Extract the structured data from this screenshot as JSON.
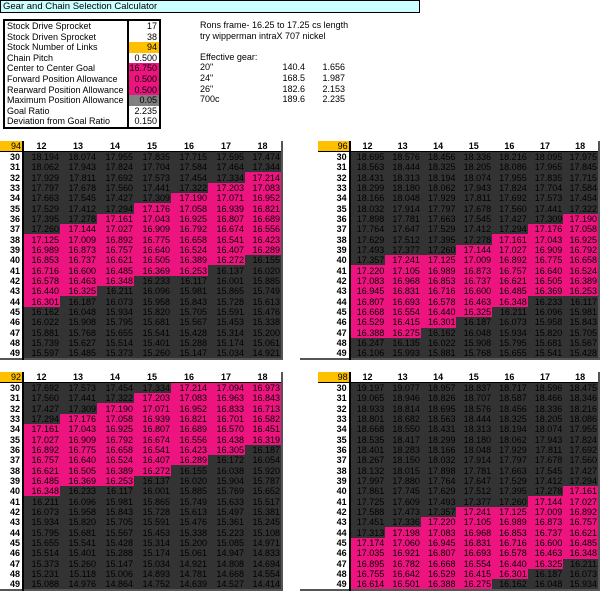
{
  "title": "Gear and Chain Selection Calculator",
  "params": [
    {
      "label": "Stock Drive Sprocket",
      "value": "17",
      "color": "#ffffff"
    },
    {
      "label": "Stock Driven Sprocket",
      "value": "38",
      "color": "#ffffff"
    },
    {
      "label": "Stock Number of Links",
      "value": "94",
      "color": "#ffc000"
    },
    {
      "label": "Chain Pitch",
      "value": "0.500",
      "color": "#ffffff"
    },
    {
      "label": "Center to Center Goal",
      "value": "16.750",
      "color": "#ee1480"
    },
    {
      "label": "Forward Position Allowance",
      "value": "0.500",
      "color": "#ee1480"
    },
    {
      "label": "Rearward Position Allowance",
      "value": "0.500",
      "color": "#ee1480"
    },
    {
      "label": "Maximum Position Allowance",
      "value": "0.05",
      "color": "#808080"
    },
    {
      "label": "Goal Ratio",
      "value": "2.235",
      "color": "#ffffff"
    },
    {
      "label": "Deviation from Goal Ratio",
      "value": "0.150",
      "color": "#ffffff"
    }
  ],
  "notes": {
    "line1": "Rons frame- 16.25 to 17.25 cs length",
    "line2": "try wipperman intraX 707 nickel",
    "effective_label": "Effective gear:",
    "gears": [
      {
        "size": "20\"",
        "gear": "140.4",
        "ratio": "1.656"
      },
      {
        "size": "24\"",
        "gear": "168.5",
        "ratio": "1.987"
      },
      {
        "size": "26\"",
        "gear": "182.6",
        "ratio": "2.153"
      },
      {
        "size": "700c",
        "gear": "189.6",
        "ratio": "2.235"
      }
    ]
  },
  "range": {
    "min": 16.25,
    "max": 17.25
  },
  "colors": {
    "in_range": "#ee1480",
    "out_of_range": "#333333",
    "links_header": "#ffc000"
  },
  "columns": [
    "12",
    "13",
    "14",
    "15",
    "16",
    "17",
    "18"
  ],
  "rows": [
    "30",
    "31",
    "32",
    "33",
    "34",
    "35",
    "36",
    "37",
    "38",
    "39",
    "40",
    "41",
    "42",
    "43",
    "44",
    "45",
    "46",
    "47",
    "48",
    "49"
  ],
  "tables": [
    {
      "links": "94",
      "values": [
        [
          "18.194",
          "18.074",
          "17.955",
          "17.835",
          "17.715",
          "17.595",
          "17.474"
        ],
        [
          "18.062",
          "17.943",
          "17.824",
          "17.704",
          "17.584",
          "17.464",
          "17.344"
        ],
        [
          "17.929",
          "17.811",
          "17.692",
          "17.573",
          "17.454",
          "17.334",
          "17.214"
        ],
        [
          "17.797",
          "17.678",
          "17.560",
          "17.441",
          "17.322",
          "17.203",
          "17.083"
        ],
        [
          "17.663",
          "17.545",
          "17.427",
          "17.309",
          "17.190",
          "17.071",
          "16.952"
        ],
        [
          "17.529",
          "17.412",
          "17.294",
          "17.176",
          "17.058",
          "16.939",
          "16.821"
        ],
        [
          "17.395",
          "17.278",
          "17.161",
          "17.043",
          "16.925",
          "16.807",
          "16.689"
        ],
        [
          "17.260",
          "17.144",
          "17.027",
          "16.909",
          "16.792",
          "16.674",
          "16.556"
        ],
        [
          "17.125",
          "17.009",
          "16.892",
          "16.775",
          "16.658",
          "16.541",
          "16.423"
        ],
        [
          "16.989",
          "16.873",
          "16.757",
          "16.640",
          "16.524",
          "16.407",
          "16.289"
        ],
        [
          "16.853",
          "16.737",
          "16.621",
          "16.505",
          "16.389",
          "16.272",
          "16.155"
        ],
        [
          "16.716",
          "16.600",
          "16.485",
          "16.369",
          "16.253",
          "16.137",
          "16.020"
        ],
        [
          "16.578",
          "16.463",
          "16.348",
          "16.233",
          "16.117",
          "16.001",
          "15.885"
        ],
        [
          "16.440",
          "16.325",
          "16.211",
          "16.096",
          "15.981",
          "15.865",
          "15.749"
        ],
        [
          "16.301",
          "16.187",
          "16.073",
          "15.958",
          "15.843",
          "15.728",
          "15.613"
        ],
        [
          "16.162",
          "16.048",
          "15.934",
          "15.820",
          "15.705",
          "15.591",
          "15.476"
        ],
        [
          "16.022",
          "15.908",
          "15.795",
          "15.681",
          "15.567",
          "15.453",
          "15.338"
        ],
        [
          "15.881",
          "15.768",
          "15.655",
          "15.541",
          "15.428",
          "15.314",
          "15.200"
        ],
        [
          "15.739",
          "15.627",
          "15.514",
          "15.401",
          "15.288",
          "15.174",
          "15.061"
        ],
        [
          "15.597",
          "15.485",
          "15.373",
          "15.260",
          "15.147",
          "15.034",
          "14.921"
        ]
      ]
    },
    {
      "links": "96",
      "values": [
        [
          "18.695",
          "18.576",
          "18.456",
          "18.336",
          "18.216",
          "18.095",
          "17.975"
        ],
        [
          "18.563",
          "18.444",
          "18.325",
          "18.205",
          "18.086",
          "17.965",
          "17.845"
        ],
        [
          "18.431",
          "18.313",
          "18.194",
          "18.074",
          "17.955",
          "17.835",
          "17.715"
        ],
        [
          "18.299",
          "18.180",
          "18.062",
          "17.943",
          "17.824",
          "17.704",
          "17.584"
        ],
        [
          "18.166",
          "18.048",
          "17.929",
          "17.811",
          "17.692",
          "17.573",
          "17.454"
        ],
        [
          "18.032",
          "17.914",
          "17.797",
          "17.678",
          "17.560",
          "17.441",
          "17.322"
        ],
        [
          "17.898",
          "17.781",
          "17.663",
          "17.545",
          "17.427",
          "17.309",
          "17.190"
        ],
        [
          "17.764",
          "17.647",
          "17.529",
          "17.412",
          "17.294",
          "17.176",
          "17.058"
        ],
        [
          "17.629",
          "17.512",
          "17.395",
          "17.278",
          "17.161",
          "17.043",
          "16.925"
        ],
        [
          "17.493",
          "17.377",
          "17.260",
          "17.144",
          "17.027",
          "16.909",
          "16.792"
        ],
        [
          "17.357",
          "17.241",
          "17.125",
          "17.009",
          "16.892",
          "16.775",
          "16.658"
        ],
        [
          "17.220",
          "17.105",
          "16.989",
          "16.873",
          "16.757",
          "16.640",
          "16.524"
        ],
        [
          "17.083",
          "16.968",
          "16.853",
          "16.737",
          "16.621",
          "16.505",
          "16.389"
        ],
        [
          "16.945",
          "16.831",
          "16.716",
          "16.600",
          "16.485",
          "16.369",
          "16.253"
        ],
        [
          "16.807",
          "16.693",
          "16.578",
          "16.463",
          "16.348",
          "16.233",
          "16.117"
        ],
        [
          "16.668",
          "16.554",
          "16.440",
          "16.325",
          "16.211",
          "16.096",
          "15.981"
        ],
        [
          "16.529",
          "16.415",
          "16.301",
          "16.187",
          "16.073",
          "15.958",
          "15.843"
        ],
        [
          "16.388",
          "16.275",
          "16.162",
          "16.048",
          "15.934",
          "15.820",
          "15.705"
        ],
        [
          "16.247",
          "16.135",
          "16.022",
          "15.908",
          "15.795",
          "15.681",
          "15.567"
        ],
        [
          "16.106",
          "15.993",
          "15.881",
          "15.768",
          "15.655",
          "15.541",
          "15.428"
        ]
      ]
    },
    {
      "links": "92",
      "values": [
        [
          "17.692",
          "17.573",
          "17.454",
          "17.334",
          "17.214",
          "17.094",
          "16.973"
        ],
        [
          "17.560",
          "17.441",
          "17.322",
          "17.203",
          "17.083",
          "16.963",
          "16.843"
        ],
        [
          "17.427",
          "17.309",
          "17.190",
          "17.071",
          "16.952",
          "16.833",
          "16.713"
        ],
        [
          "17.294",
          "17.176",
          "17.058",
          "16.939",
          "16.821",
          "16.701",
          "16.582"
        ],
        [
          "17.161",
          "17.043",
          "16.925",
          "16.807",
          "16.689",
          "16.570",
          "16.451"
        ],
        [
          "17.027",
          "16.909",
          "16.792",
          "16.674",
          "16.556",
          "16.438",
          "16.319"
        ],
        [
          "16.892",
          "16.775",
          "16.658",
          "16.541",
          "16.423",
          "16.305",
          "16.187"
        ],
        [
          "16.757",
          "16.640",
          "16.524",
          "16.407",
          "16.289",
          "16.172",
          "16.054"
        ],
        [
          "16.621",
          "16.505",
          "16.389",
          "16.272",
          "16.155",
          "16.038",
          "15.920"
        ],
        [
          "16.485",
          "16.369",
          "16.253",
          "16.137",
          "16.020",
          "15.904",
          "15.787"
        ],
        [
          "16.348",
          "16.233",
          "16.117",
          "16.001",
          "15.885",
          "15.769",
          "15.652"
        ],
        [
          "16.211",
          "16.096",
          "15.981",
          "15.865",
          "15.749",
          "15.633",
          "15.517"
        ],
        [
          "16.073",
          "15.958",
          "15.843",
          "15.728",
          "15.613",
          "15.497",
          "15.381"
        ],
        [
          "15.934",
          "15.820",
          "15.705",
          "15.591",
          "15.476",
          "15.361",
          "15.245"
        ],
        [
          "15.795",
          "15.681",
          "15.567",
          "15.453",
          "15.338",
          "15.223",
          "15.108"
        ],
        [
          "15.655",
          "15.541",
          "15.428",
          "15.314",
          "15.200",
          "15.085",
          "14.971"
        ],
        [
          "15.514",
          "15.401",
          "15.288",
          "15.174",
          "15.061",
          "14.947",
          "14.833"
        ],
        [
          "15.373",
          "15.260",
          "15.147",
          "15.034",
          "14.921",
          "14.808",
          "14.694"
        ],
        [
          "15.231",
          "15.118",
          "15.006",
          "14.893",
          "14.781",
          "14.668",
          "14.554"
        ],
        [
          "15.088",
          "14.976",
          "14.864",
          "14.752",
          "14.639",
          "14.527",
          "14.414"
        ]
      ]
    },
    {
      "links": "98",
      "values": [
        [
          "19.197",
          "19.077",
          "18.957",
          "18.837",
          "18.717",
          "18.596",
          "18.475"
        ],
        [
          "19.065",
          "18.946",
          "18.826",
          "18.707",
          "18.587",
          "18.466",
          "18.346"
        ],
        [
          "18.933",
          "18.814",
          "18.695",
          "18.576",
          "18.456",
          "18.336",
          "18.216"
        ],
        [
          "18.801",
          "18.682",
          "18.563",
          "18.444",
          "18.325",
          "18.205",
          "18.086"
        ],
        [
          "18.668",
          "18.550",
          "18.431",
          "18.313",
          "18.194",
          "18.074",
          "17.955"
        ],
        [
          "18.535",
          "18.417",
          "18.299",
          "18.180",
          "18.062",
          "17.943",
          "17.824"
        ],
        [
          "18.401",
          "18.283",
          "18.166",
          "18.048",
          "17.929",
          "17.811",
          "17.692"
        ],
        [
          "18.267",
          "18.150",
          "18.032",
          "17.914",
          "17.797",
          "17.678",
          "17.560"
        ],
        [
          "18.132",
          "18.015",
          "17.898",
          "17.781",
          "17.663",
          "17.545",
          "17.427"
        ],
        [
          "17.997",
          "17.880",
          "17.764",
          "17.647",
          "17.529",
          "17.412",
          "17.294"
        ],
        [
          "17.861",
          "17.745",
          "17.629",
          "17.512",
          "17.395",
          "17.278",
          "17.161"
        ],
        [
          "17.725",
          "17.609",
          "17.493",
          "17.377",
          "17.260",
          "17.144",
          "17.027"
        ],
        [
          "17.588",
          "17.473",
          "17.357",
          "17.241",
          "17.125",
          "17.009",
          "16.892"
        ],
        [
          "17.451",
          "17.336",
          "17.220",
          "17.105",
          "16.989",
          "16.873",
          "16.757"
        ],
        [
          "17.313",
          "17.198",
          "17.083",
          "16.968",
          "16.853",
          "16.737",
          "16.621"
        ],
        [
          "17.174",
          "17.060",
          "16.945",
          "16.831",
          "16.716",
          "16.600",
          "16.485"
        ],
        [
          "17.035",
          "16.921",
          "16.807",
          "16.693",
          "16.578",
          "16.463",
          "16.348"
        ],
        [
          "16.895",
          "16.782",
          "16.668",
          "16.554",
          "16.440",
          "16.325",
          "16.211"
        ],
        [
          "16.755",
          "16.642",
          "16.529",
          "16.415",
          "16.301",
          "16.187",
          "16.073"
        ],
        [
          "16.614",
          "16.501",
          "16.388",
          "16.275",
          "16.162",
          "16.048",
          "15.934"
        ]
      ]
    }
  ]
}
